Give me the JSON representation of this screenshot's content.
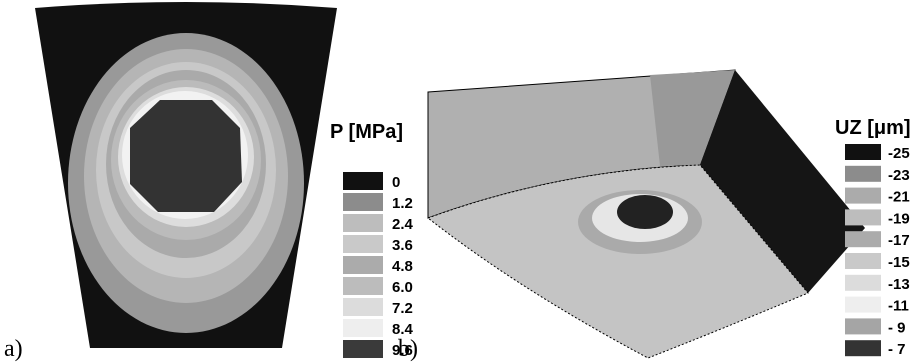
{
  "panels": [
    {
      "label": "a)",
      "legend": {
        "title": "P [MPa]",
        "items": [
          {
            "label": "0",
            "color": "#111111"
          },
          {
            "label": "1.2",
            "color": "#8c8c8c"
          },
          {
            "label": "2.4",
            "color": "#bdbdbd"
          },
          {
            "label": "3.6",
            "color": "#c9c9c9"
          },
          {
            "label": "4.8",
            "color": "#ababab"
          },
          {
            "label": "6.0",
            "color": "#bcbcbc"
          },
          {
            "label": "7.2",
            "color": "#dcdcdc"
          },
          {
            "label": "8.4",
            "color": "#eeeeee"
          },
          {
            "label": "9.6",
            "color": "#3a3a3a"
          }
        ]
      }
    },
    {
      "label": "b)",
      "legend": {
        "title": "UZ [μm]",
        "items": [
          {
            "label": "-25",
            "color": "#111111"
          },
          {
            "label": "-23",
            "color": "#8c8c8c"
          },
          {
            "label": "-21",
            "color": "#ababab"
          },
          {
            "label": "-19",
            "color": "#bdbdbd"
          },
          {
            "label": "-17",
            "color": "#ababab"
          },
          {
            "label": "-15",
            "color": "#c9c9c9"
          },
          {
            "label": "-13",
            "color": "#dcdcdc"
          },
          {
            "label": "-11",
            "color": "#eeeeee"
          },
          {
            "label": "- 9",
            "color": "#a5a5a5"
          },
          {
            "label": "- 7",
            "color": "#333333"
          }
        ]
      }
    }
  ]
}
